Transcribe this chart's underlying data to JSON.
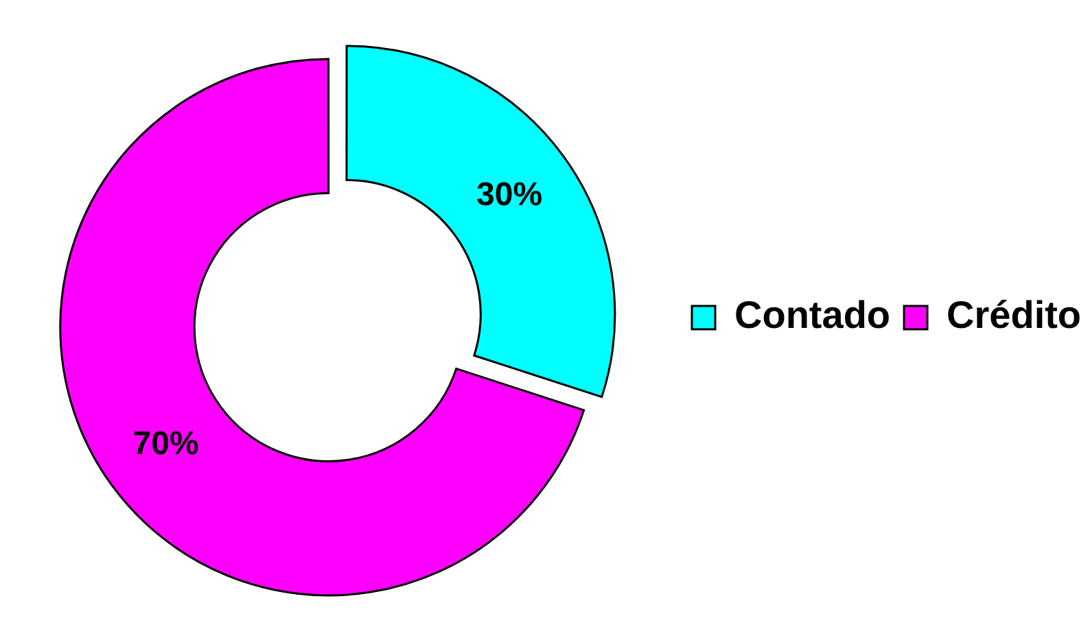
{
  "chart_data": {
    "type": "donut",
    "categories": [
      "Contado",
      "Crédito"
    ],
    "values": [
      30,
      70
    ],
    "colors": [
      "#00ffff",
      "#ff00ff"
    ],
    "value_labels": [
      "30%",
      "70%"
    ],
    "legend": "right"
  }
}
